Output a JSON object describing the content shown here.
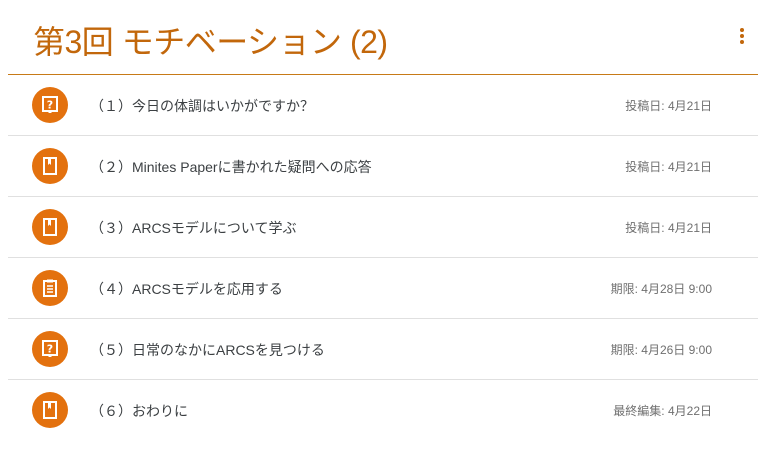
{
  "header": {
    "title": "第3回 モチベーション (2)",
    "menu_icon": "more-vert-icon"
  },
  "accent_color": "#e3710e",
  "items": [
    {
      "label": "（１）今日の体調はいかがですか？",
      "meta": "投稿日: 4月21日",
      "icon": "question-icon"
    },
    {
      "label": "（２）Minites Paperに書かれた疑問への応答",
      "meta": "投稿日: 4月21日",
      "icon": "material-book-icon"
    },
    {
      "label": "（３）ARCSモデルについて学ぶ",
      "meta": "投稿日: 4月21日",
      "icon": "material-book-icon"
    },
    {
      "label": "（４）ARCSモデルを応用する",
      "meta": "期限: 4月28日 9:00",
      "icon": "assignment-icon"
    },
    {
      "label": "（５）日常のなかにARCSを見つける",
      "meta": "期限: 4月26日 9:00",
      "icon": "question-icon"
    },
    {
      "label": "（６）おわりに",
      "meta": "最終編集: 4月22日",
      "icon": "material-book-icon"
    }
  ]
}
